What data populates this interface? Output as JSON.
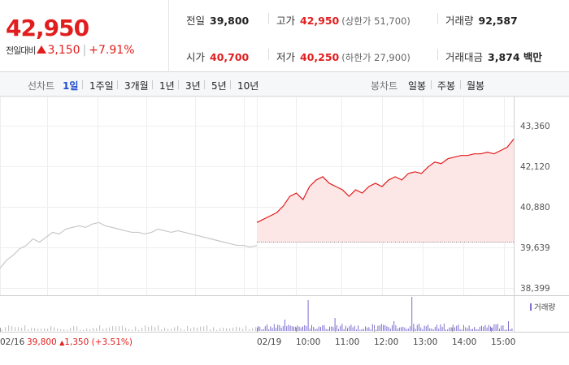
{
  "summary": {
    "price": "42,950",
    "change_label": "전일대비",
    "change_abs": "3,150",
    "change_pct": "+7.91%",
    "prev_close_label": "전일",
    "prev_close": "39,800",
    "high_label": "고가",
    "high": "42,950",
    "upper_limit": "(상한가 51,700)",
    "volume_label": "거래량",
    "volume": "92,587",
    "open_label": "시가",
    "open": "40,700",
    "low_label": "저가",
    "low": "40,250",
    "lower_limit": "(하한가 27,900)",
    "value_label": "거래대금",
    "value": "3,874 백만"
  },
  "tabs": {
    "line_chart_label": "선차트",
    "line_items": [
      "1일",
      "1주일",
      "3개월",
      "1년",
      "3년",
      "5년",
      "10년"
    ],
    "active_line": "1일",
    "candle_chart_label": "봉차트",
    "candle_items": [
      "일봉",
      "주봉",
      "월봉"
    ]
  },
  "chart_data": {
    "type": "line",
    "y_ticks": [
      "43,360",
      "42,120",
      "40,880",
      "39,639",
      "38,399"
    ],
    "ylim": [
      38399,
      43360
    ],
    "x_ticks": [
      "02/16",
      "02/19",
      "10:00",
      "11:00",
      "12:00",
      "13:00",
      "14:00",
      "15:00"
    ],
    "prev_day_label": "02/16",
    "prev_day_close": "39,800",
    "prev_day_change": "1,350",
    "prev_day_change_pct": "(+3.51%)",
    "volume_legend": "거래량",
    "base_value": 39800,
    "prev_series": [
      39000,
      39250,
      39400,
      39600,
      39700,
      39900,
      39800,
      39950,
      40100,
      40050,
      40200,
      40250,
      40300,
      40250,
      40350,
      40400,
      40300,
      40250,
      40200,
      40150,
      40100,
      40100,
      40050,
      40100,
      40200,
      40150,
      40100,
      40150,
      40100,
      40050,
      40000,
      39950,
      39900,
      39850,
      39800,
      39750,
      39700,
      39700,
      39650,
      39700
    ],
    "today_series": [
      40400,
      40500,
      40600,
      40700,
      40900,
      41200,
      41300,
      41100,
      41500,
      41700,
      41800,
      41600,
      41500,
      41400,
      41200,
      41400,
      41300,
      41500,
      41600,
      41500,
      41700,
      41800,
      41700,
      41900,
      41950,
      41900,
      42100,
      42250,
      42200,
      42350,
      42400,
      42450,
      42450,
      42500,
      42500,
      42550,
      42500,
      42600,
      42700,
      42950
    ],
    "colors": {
      "up": "#e21d1d",
      "up_fill": "#fde6e6",
      "prev_line": "#c8c8c8",
      "volume": "#7b6fd0"
    }
  }
}
